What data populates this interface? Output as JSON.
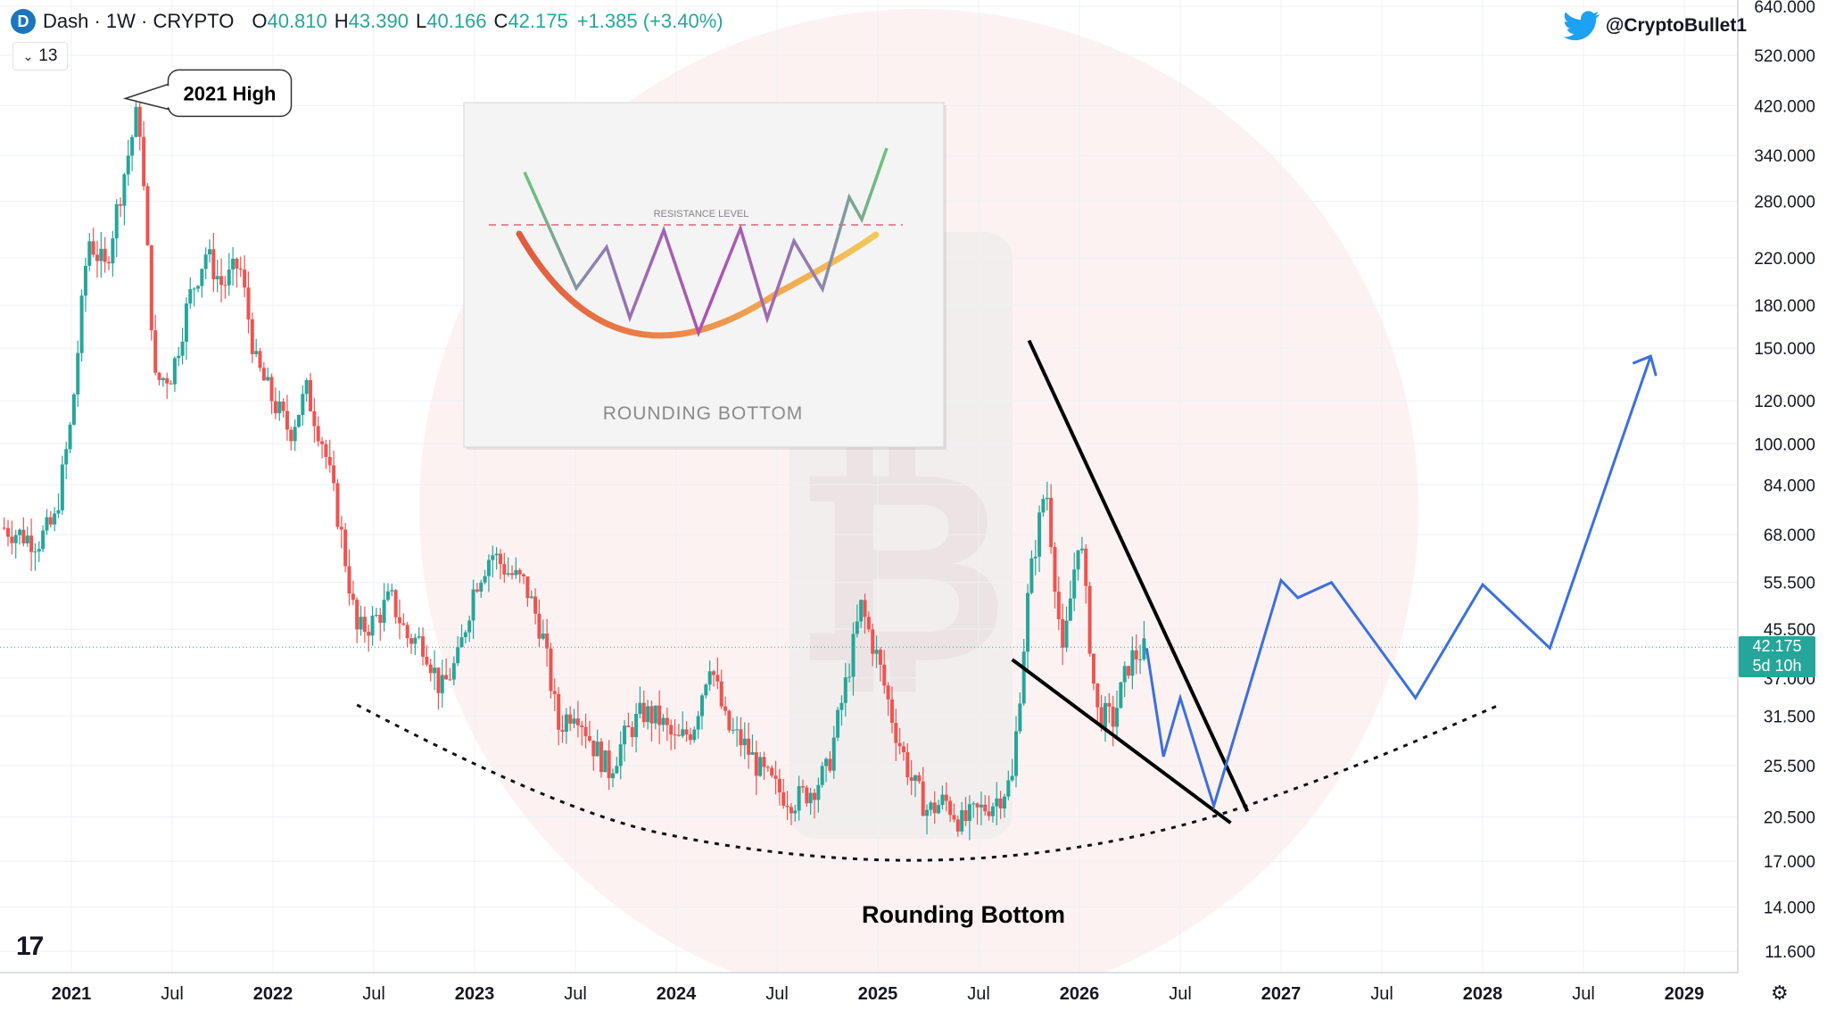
{
  "header": {
    "symbol": "Dash · 1W · CRYPTO",
    "open_label": "O",
    "open": "40.810",
    "high_label": "H",
    "high": "43.390",
    "low_label": "L",
    "low": "40.166",
    "close_label": "C",
    "close": "42.175",
    "change": "+1.385 (+3.40%)",
    "indicator_count": "13"
  },
  "watermark_handle": "@CryptoBullet1",
  "price_tag": {
    "price": "42.175",
    "countdown": "5d 10h"
  },
  "colors": {
    "up": "#26a69a",
    "down": "#ef5350",
    "projection": "#3b6fe0",
    "accent": "#1da1f2"
  },
  "icons": [
    "dash-logo-icon",
    "chevron-down-icon",
    "twitter-bird-icon",
    "tradingview-logo-icon",
    "settings-gear-icon"
  ],
  "chart_data": {
    "type": "candlestick",
    "interval": "1W",
    "scale": "log",
    "grid": true,
    "y_ticks": [
      "640.000",
      "520.000",
      "420.000",
      "340.000",
      "280.000",
      "220.000",
      "180.000",
      "150.000",
      "120.000",
      "100.000",
      "84.000",
      "68.000",
      "55.500",
      "45.500",
      "37.000",
      "31.500",
      "25.500",
      "20.500",
      "17.000",
      "14.000",
      "11.600"
    ],
    "x_ticks": [
      {
        "label": "2021",
        "date": "2021-01"
      },
      {
        "label": "Jul",
        "date": "2021-07"
      },
      {
        "label": "2022",
        "date": "2022-01"
      },
      {
        "label": "Jul",
        "date": "2022-07"
      },
      {
        "label": "2023",
        "date": "2023-01"
      },
      {
        "label": "Jul",
        "date": "2023-07"
      },
      {
        "label": "2024",
        "date": "2024-01"
      },
      {
        "label": "Jul",
        "date": "2024-07"
      },
      {
        "label": "2025",
        "date": "2025-01"
      },
      {
        "label": "Jul",
        "date": "2025-07"
      },
      {
        "label": "2026",
        "date": "2026-01"
      },
      {
        "label": "Jul",
        "date": "2026-07"
      },
      {
        "label": "2027",
        "date": "2027-01"
      },
      {
        "label": "Jul",
        "date": "2027-07"
      },
      {
        "label": "2028",
        "date": "2028-01"
      },
      {
        "label": "Jul",
        "date": "2028-07"
      },
      {
        "label": "2029",
        "date": "2029-01"
      }
    ],
    "price_path": [
      {
        "date": "2020-09",
        "price": 70
      },
      {
        "date": "2020-11",
        "price": 66
      },
      {
        "date": "2020-12",
        "price": 72
      },
      {
        "date": "2021-01",
        "price": 110
      },
      {
        "date": "2021-02",
        "price": 240
      },
      {
        "date": "2021-03",
        "price": 210
      },
      {
        "date": "2021-04",
        "price": 300
      },
      {
        "date": "2021-05",
        "price": 420
      },
      {
        "date": "2021-06",
        "price": 130
      },
      {
        "date": "2021-07",
        "price": 135
      },
      {
        "date": "2021-08",
        "price": 185
      },
      {
        "date": "2021-09",
        "price": 225
      },
      {
        "date": "2021-10",
        "price": 195
      },
      {
        "date": "2021-11",
        "price": 215
      },
      {
        "date": "2021-12",
        "price": 140
      },
      {
        "date": "2022-01",
        "price": 120
      },
      {
        "date": "2022-02",
        "price": 105
      },
      {
        "date": "2022-03",
        "price": 125
      },
      {
        "date": "2022-04",
        "price": 100
      },
      {
        "date": "2022-05",
        "price": 70
      },
      {
        "date": "2022-06",
        "price": 45
      },
      {
        "date": "2022-07",
        "price": 47
      },
      {
        "date": "2022-08",
        "price": 52
      },
      {
        "date": "2022-09",
        "price": 44
      },
      {
        "date": "2022-10",
        "price": 43
      },
      {
        "date": "2022-11",
        "price": 35
      },
      {
        "date": "2022-12",
        "price": 40
      },
      {
        "date": "2023-01",
        "price": 55
      },
      {
        "date": "2023-02",
        "price": 63
      },
      {
        "date": "2023-03",
        "price": 58
      },
      {
        "date": "2023-04",
        "price": 55
      },
      {
        "date": "2023-05",
        "price": 45
      },
      {
        "date": "2023-06",
        "price": 30
      },
      {
        "date": "2023-07",
        "price": 33
      },
      {
        "date": "2023-08",
        "price": 28
      },
      {
        "date": "2023-09",
        "price": 25
      },
      {
        "date": "2023-10",
        "price": 29
      },
      {
        "date": "2023-11",
        "price": 32
      },
      {
        "date": "2023-12",
        "price": 31
      },
      {
        "date": "2024-01",
        "price": 28
      },
      {
        "date": "2024-02",
        "price": 30
      },
      {
        "date": "2024-03",
        "price": 40
      },
      {
        "date": "2024-04",
        "price": 30
      },
      {
        "date": "2024-05",
        "price": 28
      },
      {
        "date": "2024-06",
        "price": 25
      },
      {
        "date": "2024-07",
        "price": 23
      },
      {
        "date": "2024-08",
        "price": 22
      },
      {
        "date": "2024-09",
        "price": 23
      },
      {
        "date": "2024-10",
        "price": 25
      },
      {
        "date": "2024-11",
        "price": 35
      },
      {
        "date": "2024-12",
        "price": 50
      },
      {
        "date": "2025-01",
        "price": 40
      },
      {
        "date": "2025-02",
        "price": 30
      },
      {
        "date": "2025-03",
        "price": 24
      },
      {
        "date": "2025-04",
        "price": 21
      },
      {
        "date": "2025-05",
        "price": 22
      },
      {
        "date": "2025-06",
        "price": 20
      },
      {
        "date": "2025-07",
        "price": 21
      },
      {
        "date": "2025-08",
        "price": 22
      },
      {
        "date": "2025-09",
        "price": 24
      },
      {
        "date": "2025-10",
        "price": 55
      },
      {
        "date": "2025-11",
        "price": 85
      },
      {
        "date": "2025-12",
        "price": 40
      },
      {
        "date": "2026-01",
        "price": 70
      },
      {
        "date": "2026-02",
        "price": 32
      },
      {
        "date": "2026-03",
        "price": 31
      },
      {
        "date": "2026-04",
        "price": 40
      },
      {
        "date": "2026-05",
        "price": 42
      }
    ],
    "annotations": [
      {
        "text": "2021 High",
        "date": "2021-04",
        "price": 460
      }
    ],
    "rounding_bottom_label": "Rounding Bottom",
    "rounding_bottom_curve": [
      {
        "date": "2022-06",
        "price": 33
      },
      {
        "date": "2023-06",
        "price": 21
      },
      {
        "date": "2024-06",
        "price": 17.5
      },
      {
        "date": "2025-06",
        "price": 16.8
      },
      {
        "date": "2026-06",
        "price": 19
      },
      {
        "date": "2027-05",
        "price": 25
      },
      {
        "date": "2028-02",
        "price": 33
      }
    ],
    "wedge_lines": [
      {
        "from": {
          "date": "2025-10",
          "price": 155
        },
        "to": {
          "date": "2026-11",
          "price": 21
        }
      },
      {
        "from": {
          "date": "2025-09",
          "price": 40
        },
        "to": {
          "date": "2026-10",
          "price": 20
        }
      }
    ],
    "projection_path": [
      {
        "date": "2026-05",
        "price": 42
      },
      {
        "date": "2026-06",
        "price": 26.5
      },
      {
        "date": "2026-07",
        "price": 34
      },
      {
        "date": "2026-09",
        "price": 21.5
      },
      {
        "date": "2027-01",
        "price": 56
      },
      {
        "date": "2027-02",
        "price": 52
      },
      {
        "date": "2027-04",
        "price": 55.5
      },
      {
        "date": "2027-09",
        "price": 34
      },
      {
        "date": "2028-01",
        "price": 55
      },
      {
        "date": "2028-05",
        "price": 42
      },
      {
        "date": "2028-11",
        "price": 145
      }
    ],
    "inset": {
      "title": "ROUNDING BOTTOM",
      "resistance_label": "RESISTANCE LEVEL"
    }
  }
}
